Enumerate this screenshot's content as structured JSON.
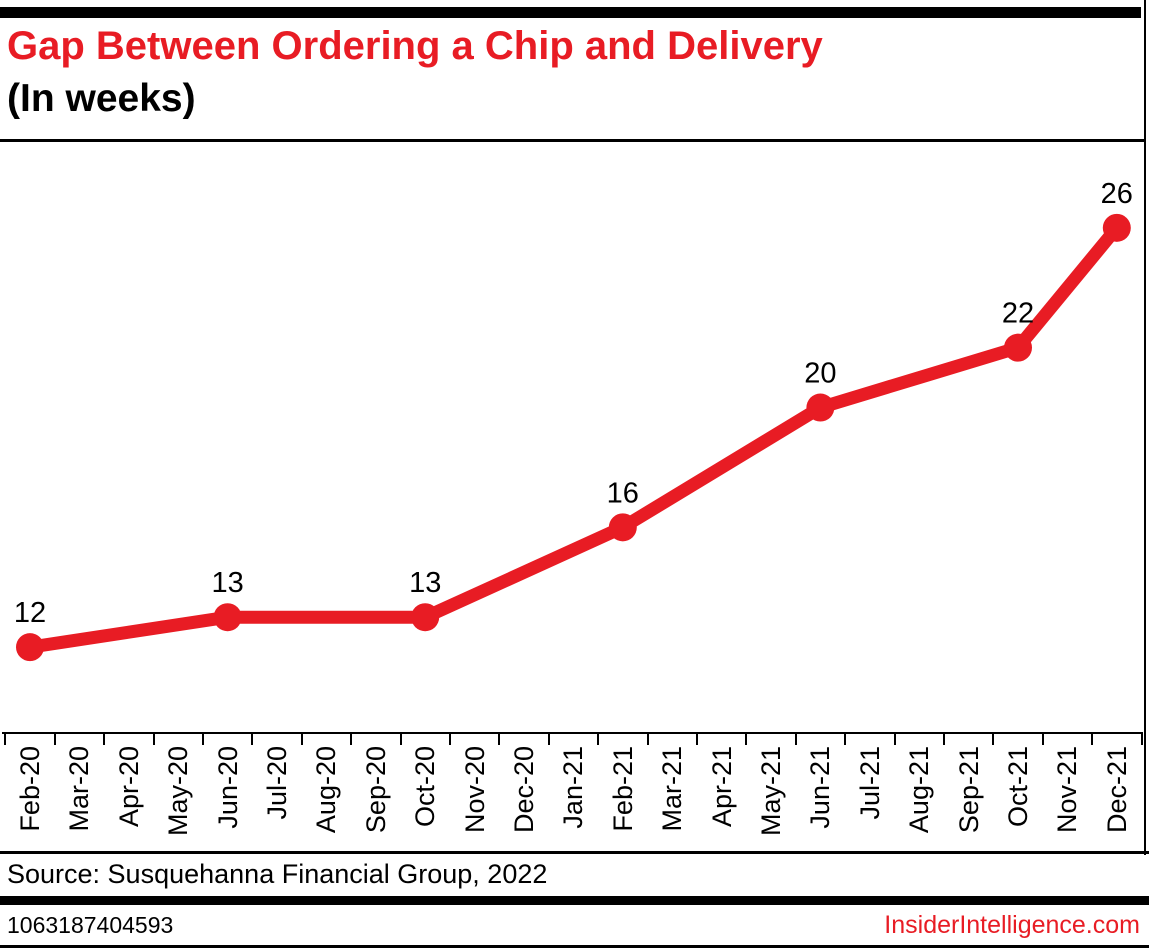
{
  "header": {
    "title": "Gap Between Ordering a Chip and Delivery",
    "subtitle": "(In weeks)"
  },
  "chart_data": {
    "type": "line",
    "title": "Gap Between Ordering a Chip and Delivery",
    "subtitle": "(In weeks)",
    "categories": [
      "Feb-20",
      "Mar-20",
      "Apr-20",
      "May-20",
      "Jun-20",
      "Jul-20",
      "Aug-20",
      "Sep-20",
      "Oct-20",
      "Nov-20",
      "Dec-20",
      "Jan-21",
      "Feb-21",
      "Mar-21",
      "Apr-21",
      "May-21",
      "Jun-21",
      "Jul-21",
      "Aug-21",
      "Sep-21",
      "Oct-21",
      "Nov-21",
      "Dec-21"
    ],
    "series": [
      {
        "name": "Gap between ordering a chip and delivery (weeks)",
        "points": [
          {
            "x": "Feb-20",
            "y": 12
          },
          {
            "x": "Jun-20",
            "y": 13
          },
          {
            "x": "Oct-20",
            "y": 13
          },
          {
            "x": "Feb-21",
            "y": 16
          },
          {
            "x": "Jun-21",
            "y": 20
          },
          {
            "x": "Oct-21",
            "y": 22
          },
          {
            "x": "Dec-21",
            "y": 26
          }
        ]
      }
    ],
    "ylim": [
      9.1,
      28.6
    ],
    "xlabel": "",
    "ylabel": "",
    "grid": false,
    "legend": "none",
    "data_labels_shown": true,
    "line_color": "#e81c24",
    "marker_radius": 14,
    "line_width": 13
  },
  "footer": {
    "source": "Source: Susquehanna Financial Group, 2022",
    "id_number": "1063187404593",
    "watermark": "InsiderIntelligence.com"
  },
  "colors": {
    "accent_red": "#e81c24",
    "bar_black": "#000000",
    "background": "#ffffff"
  }
}
